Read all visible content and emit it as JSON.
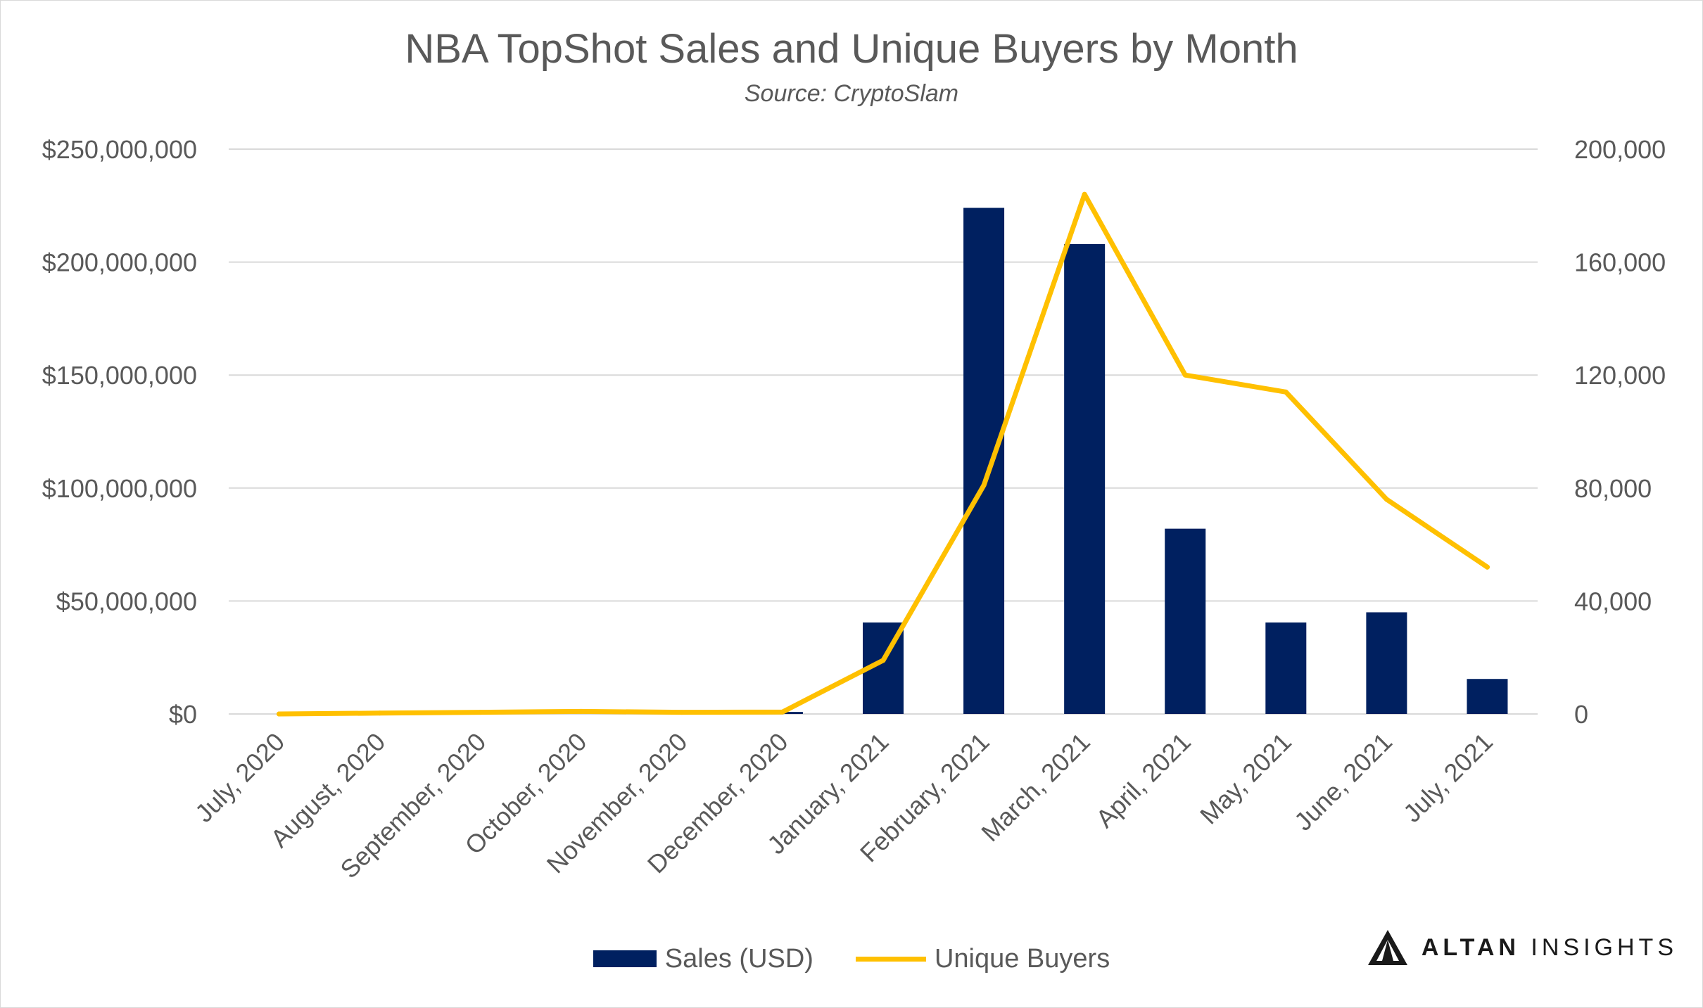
{
  "title": "NBA TopShot Sales and Unique Buyers by Month",
  "subtitle": "Source:  CryptoSlam",
  "colors": {
    "sales": "#002060",
    "buyers": "#FFC000",
    "grid": "#d9d9d9",
    "text": "#595959"
  },
  "brand": {
    "name_bold": "ALTAN",
    "name_light": "INSIGHTS",
    "logo_icon": "triangle-logo-icon"
  },
  "chart_data": {
    "type": "bar",
    "categories": [
      "July, 2020",
      "August, 2020",
      "September, 2020",
      "October, 2020",
      "November, 2020",
      "December, 2020",
      "January, 2021",
      "February, 2021",
      "March, 2021",
      "April, 2021",
      "May, 2021",
      "June, 2021",
      "July, 2021"
    ],
    "series": [
      {
        "name": "Sales (USD)",
        "type": "bar",
        "axis": "left",
        "values": [
          0,
          0,
          0,
          0,
          0,
          900000,
          40500000,
          224000000,
          208000000,
          82000000,
          40500000,
          45000000,
          15500000
        ]
      },
      {
        "name": "Unique Buyers",
        "type": "line",
        "axis": "right",
        "values": [
          0,
          300,
          600,
          900,
          600,
          700,
          19000,
          81000,
          184000,
          120000,
          114000,
          76000,
          52000
        ]
      }
    ],
    "y_left": {
      "lim": [
        0,
        250000000
      ],
      "ticks": [
        "$0",
        "$50,000,000",
        "$100,000,000",
        "$150,000,000",
        "$200,000,000",
        "$250,000,000"
      ]
    },
    "y_right": {
      "lim": [
        0,
        200000
      ],
      "ticks": [
        "0",
        "40,000",
        "80,000",
        "120,000",
        "160,000",
        "200,000"
      ]
    },
    "grid": true,
    "legend_position": "bottom"
  }
}
